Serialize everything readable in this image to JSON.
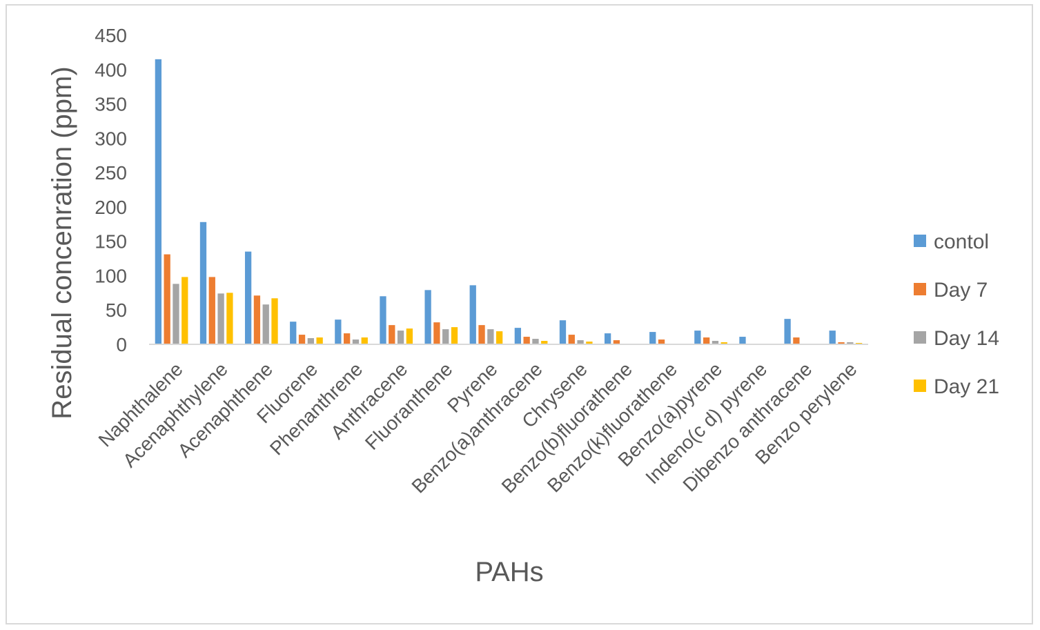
{
  "chart_data": {
    "type": "bar",
    "title": "",
    "xlabel": "PAHs",
    "ylabel": "Residual concenration (ppm)",
    "ylim": [
      0,
      450
    ],
    "yticks": [
      0,
      50,
      100,
      150,
      200,
      250,
      300,
      350,
      400,
      450
    ],
    "grid": false,
    "legend_position": "right",
    "categories": [
      "Naphthalene",
      "Acenaphthylene",
      "Acenaphthene",
      "Fluorene",
      "Phenanthrene",
      "Anthracene",
      "Fluoranthene",
      "Pyrene",
      "Benzo(a)anthracene",
      "Chrysene",
      "Benzo(b)fluorathene",
      "Benzo(k)fluorathene",
      "Benzo(a)pyrene",
      "Indeno(c d) pyrene",
      "Dibenzo anthracene",
      "Benzo perylene"
    ],
    "series": [
      {
        "name": "contol",
        "color": "#5b9bd5",
        "values": [
          415,
          178,
          135,
          33,
          36,
          70,
          79,
          86,
          24,
          35,
          16,
          18,
          20,
          11,
          37,
          20
        ]
      },
      {
        "name": "Day 7",
        "color": "#ed7d31",
        "values": [
          131,
          98,
          71,
          14,
          16,
          28,
          32,
          28,
          11,
          14,
          6,
          7,
          10,
          0,
          10,
          3
        ]
      },
      {
        "name": "Day 14",
        "color": "#a5a5a5",
        "values": [
          88,
          74,
          58,
          9,
          7,
          20,
          22,
          22,
          8,
          6,
          0,
          0,
          5,
          0,
          0,
          3
        ]
      },
      {
        "name": "Day 21",
        "color": "#ffc000",
        "values": [
          98,
          75,
          67,
          10,
          10,
          23,
          25,
          19,
          5,
          4,
          0,
          0,
          3,
          0,
          0,
          2
        ]
      }
    ]
  }
}
